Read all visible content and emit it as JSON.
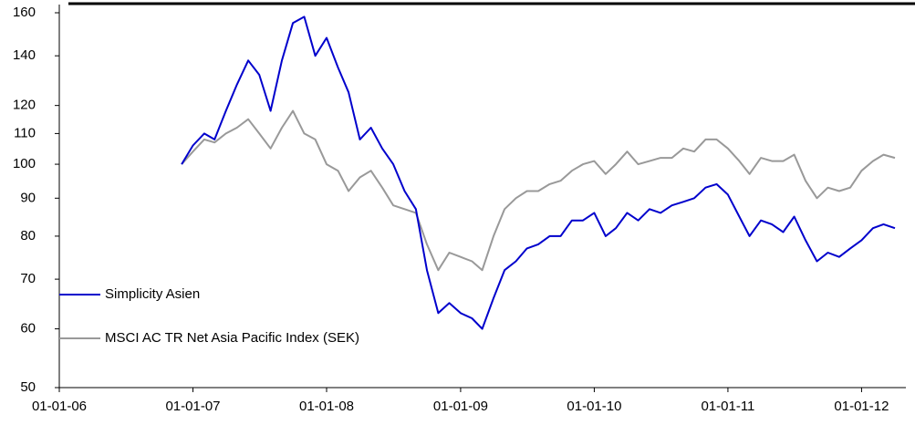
{
  "chart_data": {
    "type": "line",
    "x": [
      "2006-12-01",
      "2007-01-01",
      "2007-02-01",
      "2007-03-01",
      "2007-04-01",
      "2007-05-01",
      "2007-06-01",
      "2007-07-01",
      "2007-08-01",
      "2007-09-01",
      "2007-10-01",
      "2007-11-01",
      "2007-12-01",
      "2008-01-01",
      "2008-02-01",
      "2008-03-01",
      "2008-04-01",
      "2008-05-01",
      "2008-06-01",
      "2008-07-01",
      "2008-08-01",
      "2008-09-01",
      "2008-10-01",
      "2008-11-01",
      "2008-12-01",
      "2009-01-01",
      "2009-02-01",
      "2009-03-01",
      "2009-04-01",
      "2009-05-01",
      "2009-06-01",
      "2009-07-01",
      "2009-08-01",
      "2009-09-01",
      "2009-10-01",
      "2009-11-01",
      "2009-12-01",
      "2010-01-01",
      "2010-02-01",
      "2010-03-01",
      "2010-04-01",
      "2010-05-01",
      "2010-06-01",
      "2010-07-01",
      "2010-08-01",
      "2010-09-01",
      "2010-10-01",
      "2010-11-01",
      "2010-12-01",
      "2011-01-01",
      "2011-02-01",
      "2011-03-01",
      "2011-04-01",
      "2011-05-01",
      "2011-06-01",
      "2011-07-01",
      "2011-08-01",
      "2011-09-01",
      "2011-10-01",
      "2011-11-01",
      "2011-12-01",
      "2012-01-01",
      "2012-02-01",
      "2012-03-01",
      "2012-04-01"
    ],
    "series": [
      {
        "name": "Simplicity Asien",
        "color": "#0000cc",
        "values": [
          100,
          106,
          110,
          108,
          118,
          128,
          138,
          132,
          118,
          138,
          155,
          158,
          140,
          148,
          135,
          125,
          108,
          112,
          105,
          100,
          92,
          87,
          72,
          63,
          65,
          63,
          62,
          60,
          66,
          72,
          74,
          77,
          78,
          80,
          80,
          84,
          84,
          86,
          80,
          82,
          86,
          84,
          87,
          86,
          88,
          89,
          90,
          93,
          94,
          91,
          85,
          80,
          84,
          83,
          81,
          85,
          79,
          74,
          76,
          75,
          77,
          79,
          82,
          83,
          82
        ]
      },
      {
        "name": "MSCI AC TR Net Asia Pacific Index (SEK)",
        "color": "#999999",
        "values": [
          100,
          104,
          108,
          107,
          110,
          112,
          115,
          110,
          105,
          112,
          118,
          110,
          108,
          100,
          98,
          92,
          96,
          98,
          93,
          88,
          87,
          86,
          78,
          72,
          76,
          75,
          74,
          72,
          80,
          87,
          90,
          92,
          92,
          94,
          95,
          98,
          100,
          101,
          97,
          100,
          104,
          100,
          101,
          102,
          102,
          105,
          104,
          108,
          108,
          105,
          101,
          97,
          102,
          101,
          101,
          103,
          95,
          90,
          93,
          92,
          93,
          98,
          101,
          103,
          102
        ]
      }
    ],
    "xlim": [
      "2006-01-01",
      "2012-05-01"
    ],
    "xticks": [
      {
        "value": "2006-01-01",
        "label": "01-01-06"
      },
      {
        "value": "2007-01-01",
        "label": "01-01-07"
      },
      {
        "value": "2008-01-01",
        "label": "01-01-08"
      },
      {
        "value": "2009-01-01",
        "label": "01-01-09"
      },
      {
        "value": "2010-01-01",
        "label": "01-01-10"
      },
      {
        "value": "2011-01-01",
        "label": "01-01-11"
      },
      {
        "value": "2012-01-01",
        "label": "01-01-12"
      }
    ],
    "ylim": [
      50,
      160
    ],
    "yticks": [
      50,
      60,
      70,
      80,
      90,
      100,
      110,
      120,
      140,
      160
    ],
    "log_scale": true,
    "legend": "lower left"
  }
}
